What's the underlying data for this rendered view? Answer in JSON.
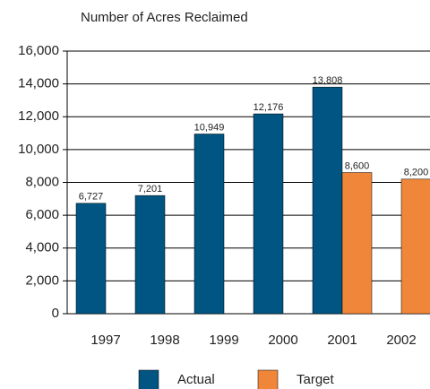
{
  "chart_data": {
    "type": "bar",
    "title": "Number of Acres Reclaimed",
    "categories": [
      "1997",
      "1998",
      "1999",
      "2000",
      "2001",
      "2002"
    ],
    "series": [
      {
        "name": "Actual",
        "color": "#005582",
        "values": [
          6727,
          7201,
          10949,
          12176,
          13808,
          null
        ],
        "value_labels": [
          "6,727",
          "7,201",
          "10,949",
          "12,176",
          "13,808",
          null
        ]
      },
      {
        "name": "Target",
        "color": "#f0863a",
        "values": [
          null,
          null,
          null,
          null,
          8600,
          8200
        ],
        "value_labels": [
          null,
          null,
          null,
          null,
          "8,600",
          "8,200"
        ]
      }
    ],
    "ylim": [
      0,
      16000
    ],
    "yticks": [
      0,
      {
        "value": 2000,
        "label": "2,000"
      },
      {
        "value": 4000,
        "label": "4,000"
      },
      {
        "value": 6000,
        "label": "6,000"
      },
      {
        "value": 8000,
        "label": "8,000"
      },
      {
        "value": 10000,
        "label": "10,000"
      },
      {
        "value": 12000,
        "label": "12,000"
      },
      {
        "value": 14000,
        "label": "14,000"
      },
      {
        "value": 16000,
        "label": "16,000"
      }
    ],
    "grid": true
  }
}
